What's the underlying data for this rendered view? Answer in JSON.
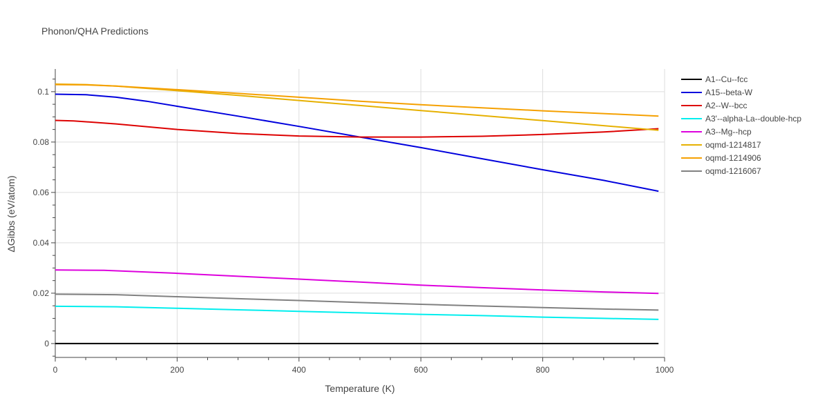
{
  "chart_data": {
    "type": "line",
    "title": "Phonon/QHA Predictions",
    "xlabel": "Temperature (K)",
    "ylabel": "ΔGibbs (eV/atom)",
    "xlim": [
      0,
      1000
    ],
    "ylim": [
      -0.0055,
      0.109
    ],
    "xticks": [
      0,
      200,
      400,
      600,
      800,
      1000
    ],
    "yticks": [
      0,
      0.02,
      0.04,
      0.06,
      0.08,
      0.1
    ],
    "xtick_labels": [
      "0",
      "200",
      "400",
      "600",
      "800",
      "1000"
    ],
    "ytick_labels": [
      "0",
      "0.02",
      "0.04",
      "0.06",
      "0.08",
      "0.1"
    ],
    "grid": true,
    "legend_position": "right",
    "series": [
      {
        "name": "A1--Cu--fcc",
        "color": "#000000",
        "x": [
          0,
          200,
          400,
          600,
          800,
          990
        ],
        "y": [
          0,
          0,
          0,
          0,
          0,
          0
        ]
      },
      {
        "name": "A15--beta-W",
        "color": "#0000dd",
        "x": [
          0,
          50,
          100,
          150,
          200,
          300,
          400,
          500,
          600,
          700,
          800,
          900,
          990
        ],
        "y": [
          0.099,
          0.0988,
          0.0978,
          0.0962,
          0.0942,
          0.0903,
          0.0862,
          0.082,
          0.0778,
          0.0734,
          0.069,
          0.0648,
          0.0605
        ]
      },
      {
        "name": "A2--W--bcc",
        "color": "#dd0000",
        "x": [
          0,
          30,
          100,
          200,
          300,
          400,
          500,
          600,
          700,
          800,
          900,
          990
        ],
        "y": [
          0.0886,
          0.0884,
          0.0872,
          0.085,
          0.0834,
          0.0824,
          0.082,
          0.082,
          0.0823,
          0.083,
          0.084,
          0.0853
        ]
      },
      {
        "name": "A3'--alpha-La--double-hcp",
        "color": "#00eeee",
        "x": [
          0,
          100,
          200,
          300,
          400,
          500,
          600,
          700,
          800,
          900,
          990
        ],
        "y": [
          0.0148,
          0.0146,
          0.014,
          0.0134,
          0.0128,
          0.0122,
          0.0116,
          0.0111,
          0.0105,
          0.01,
          0.0096
        ]
      },
      {
        "name": "A3--Mg--hcp",
        "color": "#dd00dd",
        "x": [
          0,
          80,
          200,
          300,
          400,
          500,
          600,
          700,
          800,
          900,
          990
        ],
        "y": [
          0.0292,
          0.0291,
          0.0279,
          0.0267,
          0.0256,
          0.0244,
          0.0232,
          0.0222,
          0.0213,
          0.0205,
          0.0199
        ]
      },
      {
        "name": "oqmd-1214817",
        "color": "#e6b000",
        "x": [
          0,
          50,
          100,
          200,
          300,
          400,
          500,
          600,
          700,
          800,
          900,
          990
        ],
        "y": [
          0.103,
          0.1028,
          0.1022,
          0.1004,
          0.0985,
          0.0965,
          0.0945,
          0.0925,
          0.0905,
          0.0885,
          0.0865,
          0.0847
        ]
      },
      {
        "name": "oqmd-1214906",
        "color": "#f5a000",
        "x": [
          0,
          50,
          100,
          200,
          300,
          400,
          500,
          600,
          700,
          800,
          900,
          990
        ],
        "y": [
          0.1028,
          0.1027,
          0.1022,
          0.1008,
          0.0993,
          0.0978,
          0.0962,
          0.0948,
          0.0936,
          0.0924,
          0.0913,
          0.0903
        ]
      },
      {
        "name": "oqmd-1216067",
        "color": "#808080",
        "x": [
          0,
          100,
          200,
          300,
          400,
          500,
          600,
          700,
          800,
          900,
          990
        ],
        "y": [
          0.0196,
          0.0194,
          0.0186,
          0.0178,
          0.0171,
          0.0163,
          0.0156,
          0.0149,
          0.0143,
          0.0137,
          0.0133
        ]
      }
    ]
  }
}
